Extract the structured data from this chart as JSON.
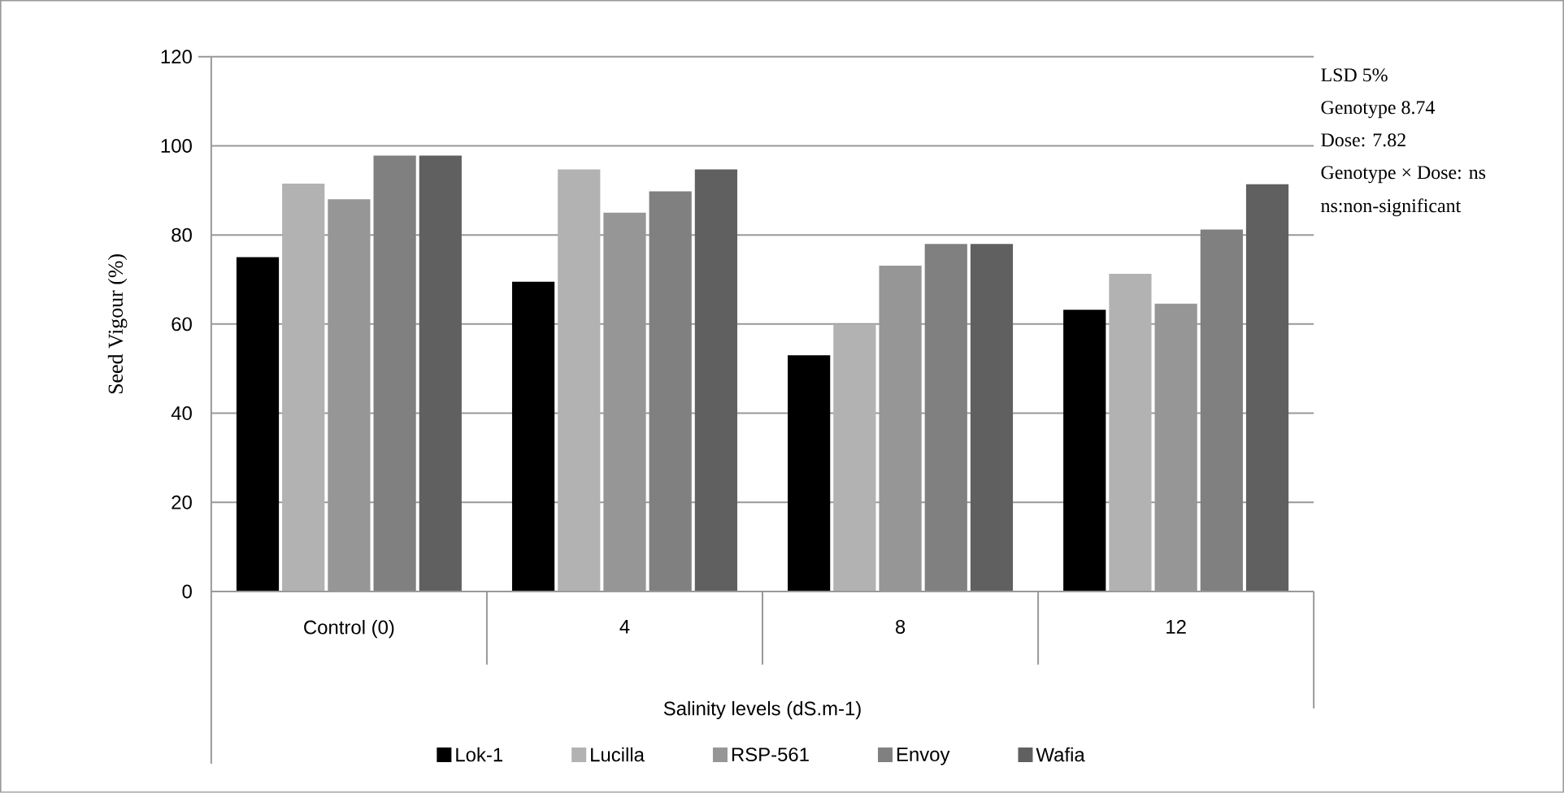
{
  "chart_data": {
    "type": "bar",
    "xlabel": "Salinity levels (dS.m-1)",
    "ylabel": "Seed Vigour (%)",
    "categories": [
      "Control (0)",
      "4",
      "8",
      "12"
    ],
    "series": [
      {
        "name": "Lok-1",
        "color": "#000000",
        "values": [
          75,
          69.5,
          53,
          63.2
        ]
      },
      {
        "name": "Lucilla",
        "color": "#b2b2b2",
        "values": [
          91.5,
          94.7,
          59.8,
          71.3
        ]
      },
      {
        "name": "RSP-561",
        "color": "#969696",
        "values": [
          88,
          85,
          73.1,
          64.6
        ]
      },
      {
        "name": "Envoy",
        "color": "#808080",
        "values": [
          97.8,
          89.8,
          78,
          81.2
        ]
      },
      {
        "name": "Wafia",
        "color": "#606060",
        "values": [
          97.8,
          94.7,
          78,
          91.4
        ]
      }
    ],
    "ylim": [
      0,
      120
    ],
    "yticks": [
      0,
      20,
      40,
      60,
      80,
      100,
      120
    ],
    "grid": "y",
    "legend": "bottom",
    "annotations": [
      "LSD 5%",
      "Genotype 8.74",
      "Dose: 7.82",
      "Genotype × Dose: ns",
      "ns:non-significant"
    ]
  }
}
